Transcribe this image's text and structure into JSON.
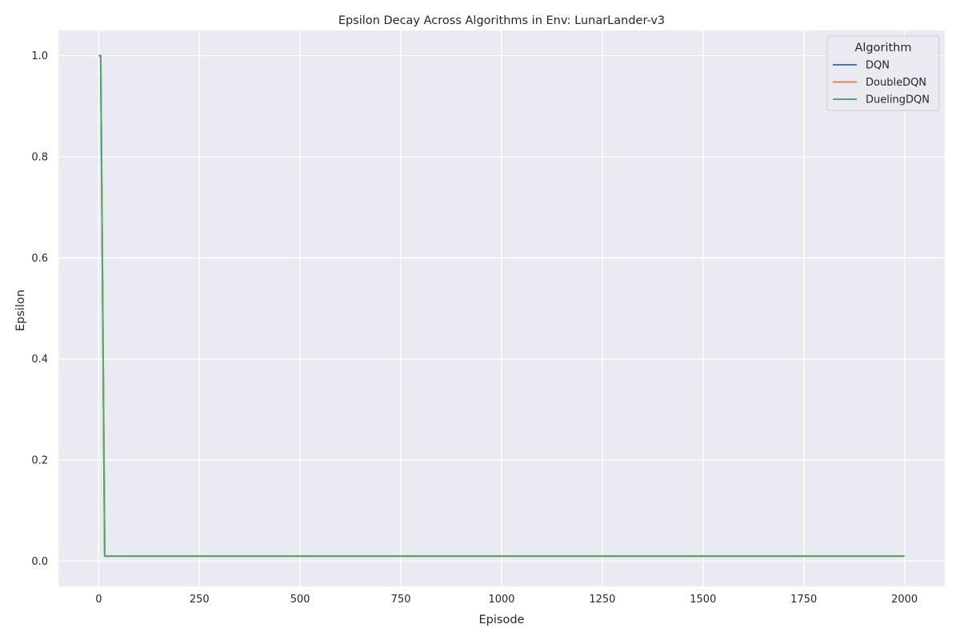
{
  "chart_data": {
    "type": "line",
    "title": "Epsilon Decay Across Algorithms in Env: LunarLander-v3",
    "xlabel": "Episode",
    "ylabel": "Epsilon",
    "xlim": [
      -100,
      2100
    ],
    "ylim": [
      -0.05,
      1.05
    ],
    "xticks": [
      0,
      250,
      500,
      750,
      1000,
      1250,
      1500,
      1750,
      2000
    ],
    "xtick_labels": [
      "0",
      "250",
      "500",
      "750",
      "1000",
      "1250",
      "1500",
      "1750",
      "2000"
    ],
    "yticks": [
      0.0,
      0.2,
      0.4,
      0.6,
      0.8,
      1.0
    ],
    "ytick_labels": [
      "0.0",
      "0.2",
      "0.4",
      "0.6",
      "0.8",
      "1.0"
    ],
    "grid": true,
    "background_color": "#eaeaf2",
    "grid_color": "#ffffff",
    "legend": {
      "title": "Algorithm",
      "placement": "top-right"
    },
    "series": [
      {
        "name": "DQN",
        "color": "#4c72b0",
        "x": [
          0,
          5,
          15,
          20,
          2000
        ],
        "y": [
          1.0,
          1.0,
          0.01,
          0.01,
          0.01
        ]
      },
      {
        "name": "DoubleDQN",
        "color": "#dd8452",
        "x": [
          0,
          5,
          15,
          20,
          2000
        ],
        "y": [
          1.0,
          1.0,
          0.01,
          0.01,
          0.01
        ]
      },
      {
        "name": "DuelingDQN",
        "color": "#55a868",
        "x": [
          0,
          5,
          15,
          20,
          2000
        ],
        "y": [
          1.0,
          1.0,
          0.01,
          0.01,
          0.01
        ]
      }
    ]
  }
}
